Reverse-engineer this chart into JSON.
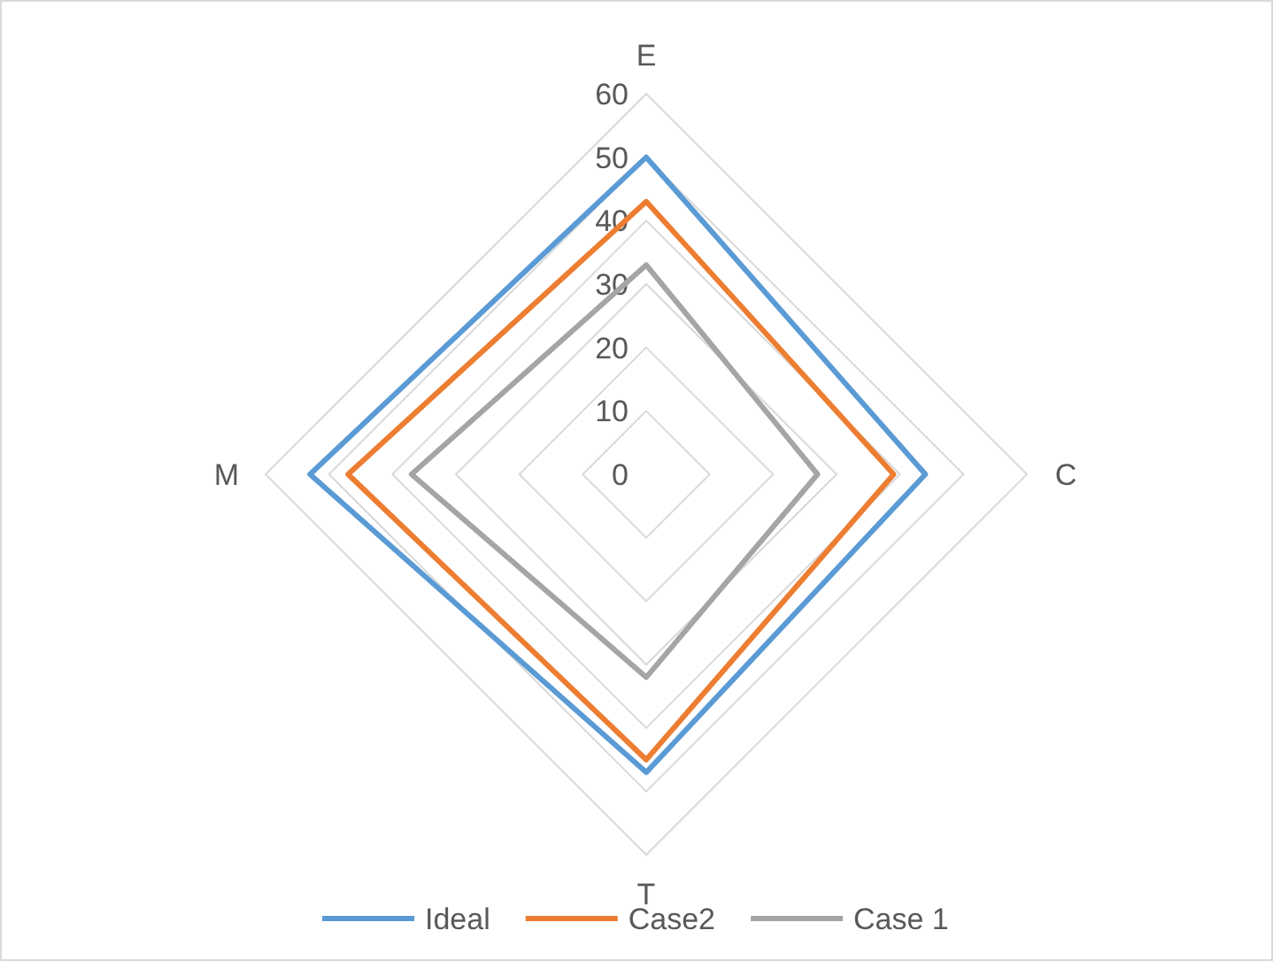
{
  "chart_data": {
    "type": "radar",
    "categories": [
      "E",
      "C",
      "T",
      "M"
    ],
    "series": [
      {
        "name": "Ideal",
        "color": "#5b9bd5",
        "values": [
          50,
          44,
          47,
          53
        ]
      },
      {
        "name": "Case2",
        "color": "#ed7d31",
        "values": [
          43,
          39,
          45,
          47
        ]
      },
      {
        "name": "Case 1",
        "color": "#a5a5a5",
        "values": [
          33,
          27,
          32,
          37
        ]
      }
    ],
    "ylim": [
      0,
      60
    ],
    "yticks": [
      0,
      10,
      20,
      30,
      40,
      50,
      60
    ],
    "grid": true,
    "legend": "bottom",
    "marker": "none"
  }
}
